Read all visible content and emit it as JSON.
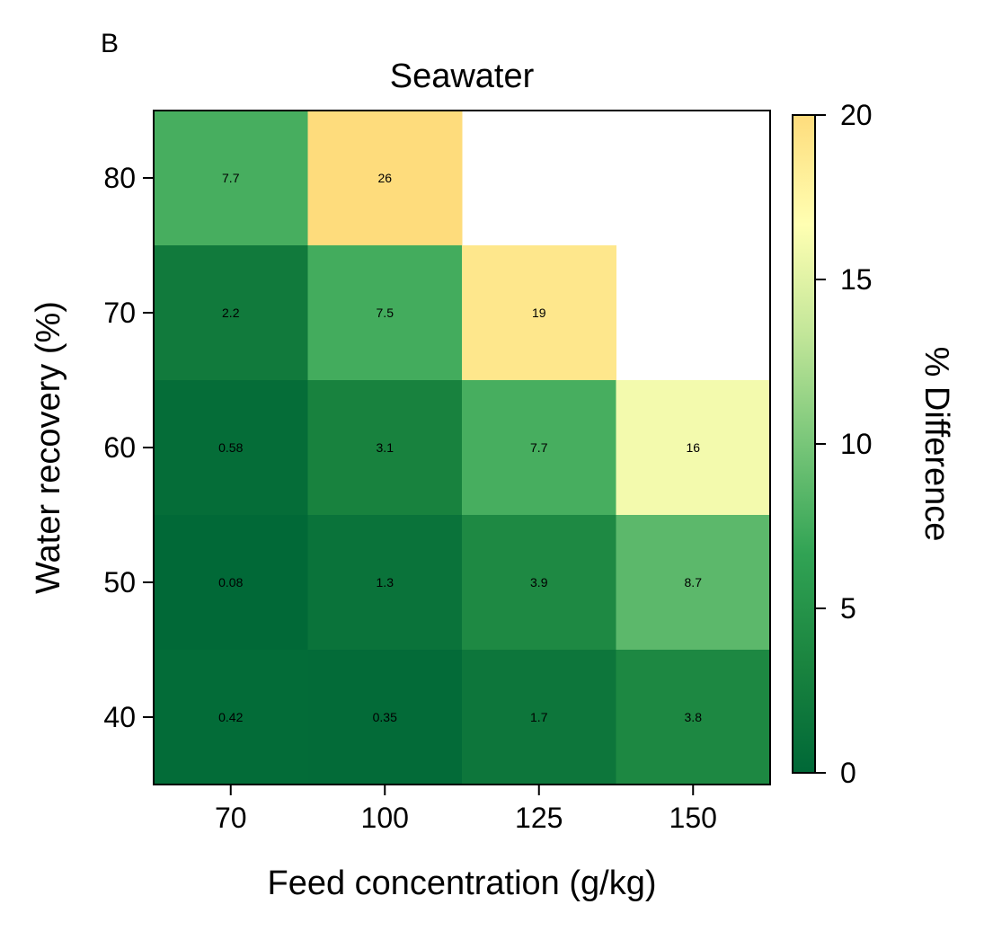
{
  "panel_label": "B",
  "chart_data": {
    "type": "heatmap",
    "title": "Seawater",
    "xlabel": "Feed concentration (g/kg)",
    "ylabel": "Water recovery (%)",
    "x_categories": [
      "70",
      "100",
      "125",
      "150"
    ],
    "y_categories": [
      "80",
      "70",
      "60",
      "50",
      "40"
    ],
    "values": [
      [
        7.7,
        26,
        null,
        null
      ],
      [
        2.2,
        7.5,
        19,
        null
      ],
      [
        0.58,
        3.1,
        7.7,
        16
      ],
      [
        0.08,
        1.3,
        3.9,
        8.7
      ],
      [
        0.42,
        0.35,
        1.7,
        3.8
      ]
    ],
    "value_labels": [
      [
        "7.7",
        "26",
        "",
        ""
      ],
      [
        "2.2",
        "7.5",
        "19",
        ""
      ],
      [
        "0.58",
        "3.1",
        "7.7",
        "16"
      ],
      [
        "0.08",
        "1.3",
        "3.9",
        "8.7"
      ],
      [
        "0.42",
        "0.35",
        "1.7",
        "3.8"
      ]
    ],
    "colorbar": {
      "label": "% Difference",
      "range": [
        0,
        20
      ],
      "ticks": [
        "0",
        "5",
        "10",
        "15",
        "20"
      ],
      "colormap": "YlGn_r",
      "colors": [
        "#006837",
        "#1a843f",
        "#31a354",
        "#78c679",
        "#c2e699",
        "#ffffb2",
        "#fedc7c"
      ]
    }
  }
}
